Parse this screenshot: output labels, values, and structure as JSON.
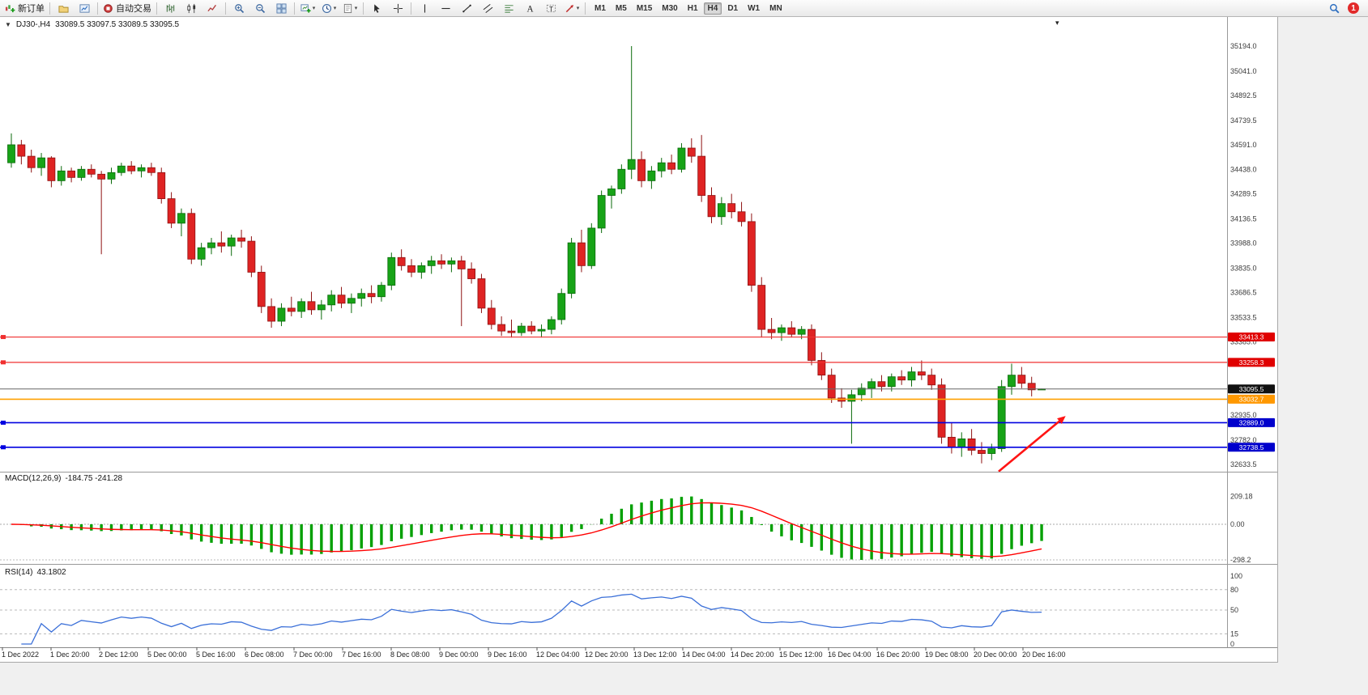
{
  "toolbar": {
    "groups": [
      {
        "items": [
          {
            "name": "new-order-button",
            "icon": "new-order",
            "label": "新订单"
          }
        ]
      },
      {
        "items": [
          {
            "name": "profiles-button",
            "icon": "profiles"
          },
          {
            "name": "market-watch-button",
            "icon": "market-watch"
          }
        ]
      },
      {
        "items": [
          {
            "name": "auto-trading-button",
            "icon": "auto-trading",
            "label": "自动交易"
          }
        ]
      },
      {
        "items": [
          {
            "name": "bar-chart-button",
            "icon": "bar-chart"
          },
          {
            "name": "candlestick-chart-button",
            "icon": "candlestick-chart"
          },
          {
            "name": "line-chart-button",
            "icon": "line-chart"
          }
        ]
      },
      {
        "items": [
          {
            "name": "zoom-in-button",
            "icon": "zoom-in"
          },
          {
            "name": "zoom-out-button",
            "icon": "zoom-out"
          },
          {
            "name": "tile-windows-button",
            "icon": "tile-windows"
          }
        ]
      },
      {
        "items": [
          {
            "name": "new-chart-button",
            "icon": "chart-plus",
            "dropdown": true
          },
          {
            "name": "periods-button",
            "icon": "clock",
            "dropdown": true
          },
          {
            "name": "templates-button",
            "icon": "template",
            "dropdown": true
          }
        ]
      },
      {
        "items": [
          {
            "name": "cursor-button",
            "icon": "cursor"
          },
          {
            "name": "crosshair-button",
            "icon": "crosshair"
          }
        ]
      },
      {
        "items": [
          {
            "name": "vertical-line-button",
            "icon": "vertical-line"
          },
          {
            "name": "horizontal-line-button",
            "icon": "horizontal-line"
          },
          {
            "name": "trendline-button",
            "icon": "trendline"
          },
          {
            "name": "channel-button",
            "icon": "channel"
          },
          {
            "name": "fibonacci-button",
            "icon": "fibonacci"
          },
          {
            "name": "text-button",
            "icon": "text"
          },
          {
            "name": "label-button",
            "icon": "label"
          },
          {
            "name": "arrows-button",
            "icon": "arrows",
            "dropdown": true
          }
        ]
      }
    ],
    "timeframes": [
      "M1",
      "M5",
      "M15",
      "M30",
      "H1",
      "H4",
      "D1",
      "W1",
      "MN"
    ],
    "active_timeframe": "H4",
    "notification_count": "1"
  },
  "chart_data": {
    "type": "candlestick",
    "symbol_period": "DJ30-,H4",
    "ohlc_text": "33089.5 33097.5 33089.5 33095.5",
    "price_scale_labels": [
      "35194.0",
      "35041.0",
      "34892.5",
      "34739.5",
      "34591.0",
      "34438.0",
      "34289.5",
      "34136.5",
      "33988.0",
      "33835.0",
      "33686.5",
      "33533.5",
      "33385.0",
      "32935.0",
      "32782.0",
      "32633.5"
    ],
    "price_scale_values": [
      35194.0,
      35041.0,
      34892.5,
      34739.5,
      34591.0,
      34438.0,
      34289.5,
      34136.5,
      33988.0,
      33835.0,
      33686.5,
      33533.5,
      33385.0,
      32935.0,
      32782.0,
      32633.5
    ],
    "x_labels": [
      "1 Dec 2022",
      "1 Dec 20:00",
      "2 Dec 12:00",
      "5 Dec 00:00",
      "5 Dec 16:00",
      "6 Dec 08:00",
      "7 Dec 00:00",
      "7 Dec 16:00",
      "8 Dec 08:00",
      "9 Dec 00:00",
      "9 Dec 16:00",
      "12 Dec 04:00",
      "12 Dec 20:00",
      "13 Dec 12:00",
      "14 Dec 04:00",
      "14 Dec 20:00",
      "15 Dec 12:00",
      "16 Dec 04:00",
      "16 Dec 20:00",
      "19 Dec 08:00",
      "20 Dec 00:00",
      "20 Dec 16:00"
    ],
    "candles": [
      [
        34480,
        34660,
        34450,
        34590
      ],
      [
        34590,
        34620,
        34470,
        34520
      ],
      [
        34520,
        34560,
        34420,
        34450
      ],
      [
        34450,
        34540,
        34400,
        34510
      ],
      [
        34510,
        34520,
        34330,
        34370
      ],
      [
        34370,
        34460,
        34340,
        34430
      ],
      [
        34430,
        34450,
        34360,
        34390
      ],
      [
        34390,
        34460,
        34370,
        34440
      ],
      [
        34440,
        34470,
        34390,
        34410
      ],
      [
        34410,
        34430,
        33920,
        34380
      ],
      [
        34380,
        34450,
        34350,
        34420
      ],
      [
        34420,
        34480,
        34400,
        34460
      ],
      [
        34460,
        34490,
        34410,
        34430
      ],
      [
        34430,
        34470,
        34390,
        34450
      ],
      [
        34450,
        34480,
        34400,
        34420
      ],
      [
        34420,
        34450,
        34230,
        34260
      ],
      [
        34260,
        34300,
        34080,
        34110
      ],
      [
        34110,
        34200,
        34030,
        34170
      ],
      [
        34170,
        34200,
        33860,
        33890
      ],
      [
        33890,
        33990,
        33850,
        33960
      ],
      [
        33960,
        34020,
        33920,
        33990
      ],
      [
        33990,
        34060,
        33930,
        33970
      ],
      [
        33970,
        34040,
        33910,
        34020
      ],
      [
        34020,
        34070,
        33960,
        34000
      ],
      [
        34000,
        34030,
        33780,
        33810
      ],
      [
        33810,
        33850,
        33560,
        33600
      ],
      [
        33600,
        33650,
        33470,
        33510
      ],
      [
        33510,
        33620,
        33480,
        33590
      ],
      [
        33590,
        33660,
        33540,
        33570
      ],
      [
        33570,
        33650,
        33530,
        33630
      ],
      [
        33630,
        33690,
        33550,
        33580
      ],
      [
        33580,
        33640,
        33520,
        33610
      ],
      [
        33610,
        33700,
        33570,
        33670
      ],
      [
        33670,
        33720,
        33590,
        33620
      ],
      [
        33620,
        33680,
        33560,
        33650
      ],
      [
        33650,
        33710,
        33600,
        33680
      ],
      [
        33680,
        33730,
        33620,
        33660
      ],
      [
        33660,
        33750,
        33630,
        33730
      ],
      [
        33730,
        33930,
        33700,
        33900
      ],
      [
        33900,
        33950,
        33820,
        33850
      ],
      [
        33850,
        33890,
        33780,
        33810
      ],
      [
        33810,
        33870,
        33770,
        33850
      ],
      [
        33850,
        33910,
        33800,
        33880
      ],
      [
        33880,
        33920,
        33830,
        33860
      ],
      [
        33860,
        33900,
        33810,
        33880
      ],
      [
        33880,
        33910,
        33480,
        33830
      ],
      [
        33830,
        33870,
        33740,
        33770
      ],
      [
        33770,
        33800,
        33560,
        33590
      ],
      [
        33590,
        33640,
        33460,
        33490
      ],
      [
        33490,
        33540,
        33420,
        33450
      ],
      [
        33450,
        33520,
        33410,
        33440
      ],
      [
        33440,
        33500,
        33420,
        33480
      ],
      [
        33480,
        33510,
        33430,
        33450
      ],
      [
        33450,
        33490,
        33410,
        33460
      ],
      [
        33460,
        33540,
        33430,
        33520
      ],
      [
        33520,
        33710,
        33490,
        33680
      ],
      [
        33680,
        34020,
        33650,
        33990
      ],
      [
        33990,
        34070,
        33810,
        33850
      ],
      [
        33850,
        34110,
        33830,
        34080
      ],
      [
        34080,
        34310,
        34050,
        34280
      ],
      [
        34280,
        34340,
        34200,
        34320
      ],
      [
        34320,
        34470,
        34290,
        34440
      ],
      [
        34440,
        35194,
        34380,
        34500
      ],
      [
        34500,
        34550,
        34330,
        34370
      ],
      [
        34370,
        34460,
        34320,
        34430
      ],
      [
        34430,
        34510,
        34390,
        34480
      ],
      [
        34480,
        34530,
        34410,
        34440
      ],
      [
        34440,
        34600,
        34420,
        34570
      ],
      [
        34570,
        34630,
        34480,
        34520
      ],
      [
        34520,
        34650,
        34240,
        34280
      ],
      [
        34280,
        34330,
        34110,
        34150
      ],
      [
        34150,
        34270,
        34100,
        34230
      ],
      [
        34230,
        34290,
        34140,
        34180
      ],
      [
        34180,
        34240,
        34090,
        34120
      ],
      [
        34120,
        34170,
        33690,
        33730
      ],
      [
        33730,
        33780,
        33410,
        33460
      ],
      [
        33460,
        33530,
        33400,
        33440
      ],
      [
        33440,
        33490,
        33390,
        33470
      ],
      [
        33470,
        33510,
        33410,
        33430
      ],
      [
        33430,
        33480,
        33400,
        33460
      ],
      [
        33460,
        33490,
        33240,
        33270
      ],
      [
        33270,
        33320,
        33150,
        33180
      ],
      [
        33180,
        33220,
        33010,
        33040
      ],
      [
        33040,
        33100,
        32980,
        33020
      ],
      [
        33020,
        33090,
        32760,
        33060
      ],
      [
        33060,
        33130,
        33020,
        33100
      ],
      [
        33100,
        33160,
        33040,
        33140
      ],
      [
        33140,
        33180,
        33080,
        33110
      ],
      [
        33110,
        33190,
        33080,
        33170
      ],
      [
        33170,
        33210,
        33120,
        33150
      ],
      [
        33150,
        33230,
        33110,
        33200
      ],
      [
        33200,
        33270,
        33150,
        33180
      ],
      [
        33180,
        33220,
        33090,
        33120
      ],
      [
        33120,
        33160,
        32760,
        32800
      ],
      [
        32800,
        32890,
        32700,
        32740
      ],
      [
        32740,
        32830,
        32680,
        32790
      ],
      [
        32790,
        32850,
        32690,
        32720
      ],
      [
        32720,
        32770,
        32640,
        32700
      ],
      [
        32700,
        32760,
        32660,
        32730
      ],
      [
        32730,
        33150,
        32710,
        33110
      ],
      [
        33110,
        33250,
        33060,
        33180
      ],
      [
        33180,
        33230,
        33100,
        33130
      ],
      [
        33130,
        33170,
        33050,
        33090
      ],
      [
        33089.5,
        33097.5,
        33089.5,
        33095.5
      ]
    ],
    "colors": {
      "bull": "#17a317",
      "bull_dark": "#0a6a0a",
      "bear": "#df2323",
      "bear_dark": "#8e1212",
      "background": "#ffffff"
    },
    "hlines": [
      {
        "name": "resistance-line-1",
        "price": 33413.3,
        "label": "33413.3",
        "color": "#f03030",
        "badge_bg": "#e00000",
        "width": 1.2,
        "handles": true
      },
      {
        "name": "resistance-line-2",
        "price": 33258.3,
        "label": "33258.3",
        "color": "#f03030",
        "badge_bg": "#e00000",
        "width": 1.2,
        "handles": true
      },
      {
        "name": "current-price-line",
        "price": 33095.5,
        "label": "33095.5",
        "color": "#666666",
        "badge_bg": "#111111",
        "width": 1,
        "handles": false
      },
      {
        "name": "pivot-line-orange",
        "price": 33032.7,
        "label": "33032.7",
        "color": "#ffa000",
        "badge_bg": "#ff9800",
        "width": 1.6,
        "handles": false
      },
      {
        "name": "support-line-blue-1",
        "price": 32889.0,
        "label": "32889.0",
        "color": "#0000e0",
        "badge_bg": "#0000cc",
        "width": 1.6,
        "handles": true
      },
      {
        "name": "support-line-blue-2",
        "price": 32738.5,
        "label": "32738.5",
        "color": "#0000e0",
        "badge_bg": "#0000cc",
        "width": 1.6,
        "handles": true
      }
    ],
    "arrow": {
      "name": "trend-arrow",
      "from_bar": 98.7,
      "from_price": 32590,
      "to_bar": 105.4,
      "to_price": 32930,
      "color": "#ff1414"
    },
    "indicators": {
      "macd": {
        "label": "MACD(12,26,9)",
        "values_text": "-184.75 -241.28",
        "params": [
          12,
          26,
          9
        ],
        "scale_labels": [
          "209.18",
          "0.00",
          "-298.2"
        ],
        "histogram_color": "#00a000",
        "signal_color": "#ff0000"
      },
      "rsi": {
        "label": "RSI(14)",
        "value_text": "43.1802",
        "period": 14,
        "levels": [
          80,
          50,
          15
        ],
        "scale_labels": [
          "100",
          "80",
          "50",
          "15",
          "0"
        ],
        "scale_values": [
          100,
          80,
          50,
          15,
          0
        ],
        "line_color": "#3a6fd8"
      }
    }
  }
}
